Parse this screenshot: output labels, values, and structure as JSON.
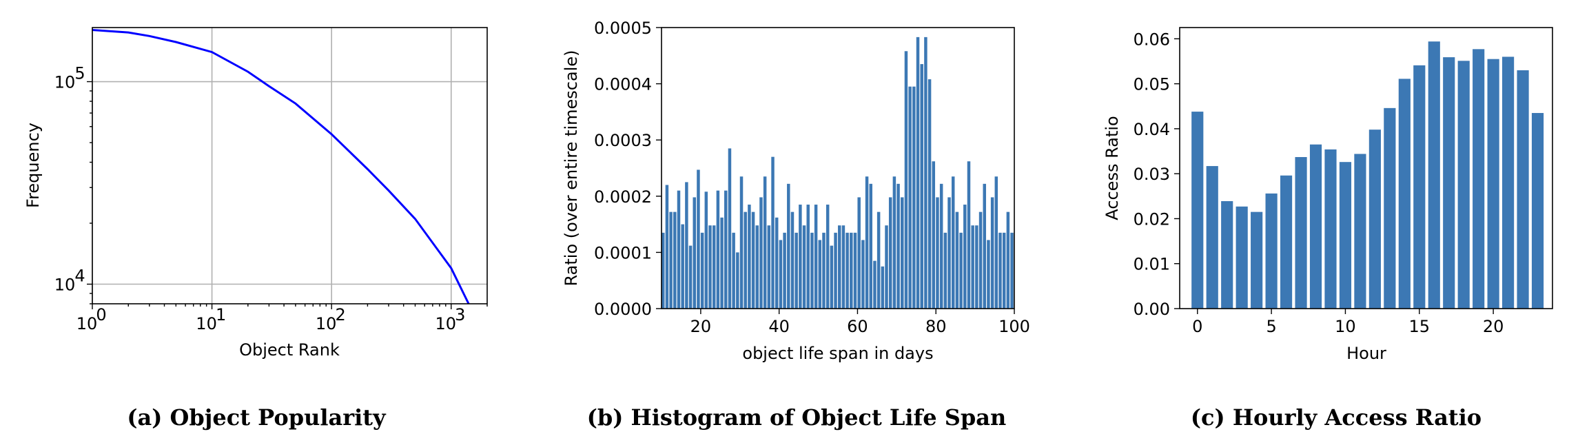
{
  "chart_data": [
    {
      "type": "line",
      "caption": "(a) Object Popularity",
      "xlabel": "Object Rank",
      "ylabel": "Frequency",
      "xscale": "log",
      "yscale": "log",
      "xlim": [
        1,
        2000
      ],
      "ylim": [
        8000,
        185000
      ],
      "grid": true,
      "color": "#0000ff",
      "x_ticks": [
        {
          "base": "10",
          "exp": "0"
        },
        {
          "base": "10",
          "exp": "1"
        },
        {
          "base": "10",
          "exp": "2"
        },
        {
          "base": "10",
          "exp": "3"
        }
      ],
      "y_ticks": [
        {
          "base": "10",
          "exp": "4"
        },
        {
          "base": "10",
          "exp": "5"
        }
      ],
      "series": [
        {
          "x": [
            1,
            2,
            3,
            5,
            10,
            20,
            30,
            50,
            100,
            200,
            300,
            500,
            1000,
            1400
          ],
          "y": [
            180000,
            175000,
            168000,
            157000,
            140000,
            112000,
            95000,
            78000,
            55000,
            37000,
            29000,
            21000,
            12000,
            8000
          ]
        }
      ]
    },
    {
      "type": "bar",
      "caption": "(b) Histogram of Object Life Span",
      "xlabel": "object life span in days",
      "ylabel": "Ratio (over entire timescale)",
      "xlim": [
        10,
        100
      ],
      "ylim": [
        0,
        0.0005
      ],
      "grid": false,
      "color": "#3c78b4",
      "bin_start": 10,
      "bin_width": 1,
      "x_ticks": [
        "20",
        "40",
        "60",
        "80",
        "100"
      ],
      "y_ticks": [
        "0.0000",
        "0.0001",
        "0.0002",
        "0.0003",
        "0.0004",
        "0.0005"
      ],
      "values": [
        0.000135,
        0.00022,
        0.000172,
        0.000172,
        0.00021,
        0.00015,
        0.000225,
        0.000112,
        0.000198,
        0.000247,
        0.000135,
        0.000208,
        0.000148,
        0.000148,
        0.00021,
        0.000162,
        0.00021,
        0.000285,
        0.000135,
        0.0001,
        0.000235,
        0.000172,
        0.000185,
        0.000172,
        0.000148,
        0.000198,
        0.000235,
        0.000148,
        0.00027,
        0.000162,
        0.000122,
        0.000135,
        0.000222,
        0.000172,
        0.000135,
        0.000185,
        0.000148,
        0.000185,
        0.000135,
        0.000185,
        0.000122,
        0.000135,
        0.000185,
        0.000112,
        0.000135,
        0.000148,
        0.000148,
        0.000135,
        0.000135,
        0.000135,
        0.000198,
        0.000122,
        0.000235,
        0.000222,
        8.5e-05,
        0.000172,
        7.5e-05,
        0.000148,
        0.000198,
        0.000235,
        0.000222,
        0.000198,
        0.000458,
        0.000395,
        0.000395,
        0.000483,
        0.000435,
        0.000483,
        0.000408,
        0.000262,
        0.000198,
        0.000222,
        0.000135,
        0.000198,
        0.000235,
        0.000172,
        0.000135,
        0.000185,
        0.000262,
        0.000148,
        0.000148,
        0.000172,
        0.000222,
        0.000122,
        0.000198,
        0.000235,
        0.000135,
        0.000135,
        0.000172,
        0.000135
      ]
    },
    {
      "type": "bar",
      "caption": "(c) Hourly Access Ratio",
      "xlabel": "Hour",
      "ylabel": "Access Ratio",
      "xlim": [
        -1.2,
        24.0
      ],
      "ylim": [
        0,
        0.0625
      ],
      "grid": false,
      "color": "#3c78b4",
      "categories": [
        0,
        1,
        2,
        3,
        4,
        5,
        6,
        7,
        8,
        9,
        10,
        11,
        12,
        13,
        14,
        15,
        16,
        17,
        18,
        19,
        20,
        21,
        22,
        23
      ],
      "x_ticks": [
        "0",
        "5",
        "10",
        "15",
        "20"
      ],
      "y_ticks": [
        "0.00",
        "0.01",
        "0.02",
        "0.03",
        "0.04",
        "0.05",
        "0.06"
      ],
      "values": [
        0.0438,
        0.0317,
        0.0239,
        0.0227,
        0.0215,
        0.0256,
        0.0296,
        0.0337,
        0.0365,
        0.0354,
        0.0326,
        0.0344,
        0.0398,
        0.0446,
        0.0511,
        0.0541,
        0.0594,
        0.0559,
        0.0551,
        0.0577,
        0.0555,
        0.056,
        0.053,
        0.0435
      ]
    }
  ]
}
